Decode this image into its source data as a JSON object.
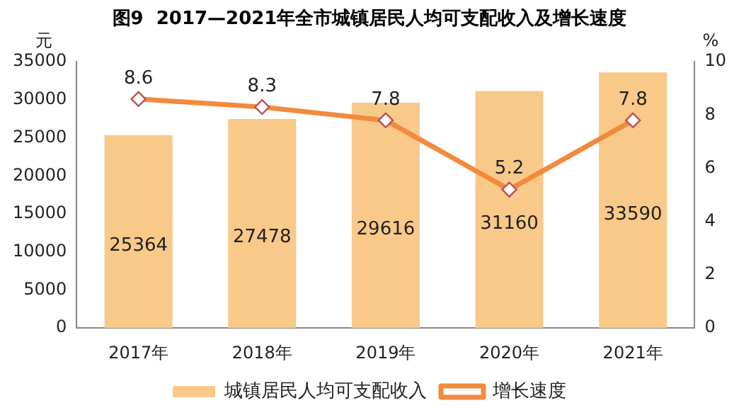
{
  "chart_data": {
    "type": "bar",
    "title": "图9  2017—2021年全市城镇居民人均可支配收入及增长速度",
    "ylabel": "元",
    "y2label": "%",
    "categories": [
      "2017年",
      "2018年",
      "2019年",
      "2020年",
      "2021年"
    ],
    "series": [
      {
        "name": "城镇居民人均可支配收入",
        "color": "#f9c98a",
        "values": [
          25364,
          27478,
          29616,
          31160,
          33590
        ]
      },
      {
        "name": "增长速度",
        "type": "line",
        "axis": "y2",
        "color": "#f28a3c",
        "values": [
          8.6,
          8.3,
          7.8,
          5.2,
          7.8
        ]
      }
    ],
    "ylim": [
      0,
      35000
    ],
    "yticks": [
      0,
      5000,
      10000,
      15000,
      20000,
      25000,
      30000,
      35000
    ],
    "y2lim": [
      0,
      10
    ],
    "y2ticks": [
      0,
      2,
      4,
      6,
      8,
      10
    ],
    "data_labels": true,
    "grid": false,
    "legend": "bottom",
    "marker": "diamond",
    "line_style": "solid"
  }
}
